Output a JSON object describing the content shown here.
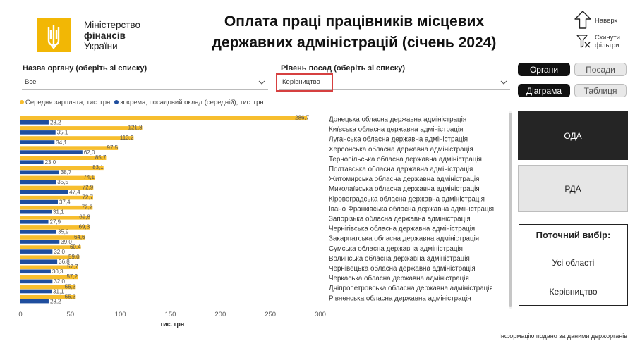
{
  "logo": {
    "line1": "Міністерство",
    "line2": "фінансів",
    "line3": "України",
    "color": "#f2b705"
  },
  "title": {
    "line1": "Оплата праці працівників місцевих",
    "line2": "державних адміністрацій (січень 2024)"
  },
  "nav": {
    "top_label": "Наверх",
    "reset_label_1": "Скинути",
    "reset_label_2": "фільтри"
  },
  "filters": {
    "organ_label": "Назва органу (оберіть зі списку)",
    "organ_value": "Все",
    "position_label": "Рівень посад (оберіть зі списку)",
    "position_value": "Керівництво"
  },
  "toggles": {
    "organy": "Органи",
    "posady": "Посади",
    "diagrama": "Діаграма",
    "tablytsia": "Таблиця"
  },
  "buttons": {
    "oda": "ОДА",
    "rda": "РДА"
  },
  "selection": {
    "header": "Поточний вибір:",
    "region": "Усі області",
    "level": "Керівництво"
  },
  "footnote": "Інформацію подано за даними держорганів",
  "colors": {
    "avg_salary": "#f7be2e",
    "base_salary": "#1f4e9e",
    "dark": "#252525"
  },
  "chart_data": {
    "type": "bar",
    "orientation": "horizontal",
    "categories": [
      "Донецька обласна державна адміністрація",
      "Київська обласна державна адміністрація",
      "Луганська обласна державна адміністрація",
      "Херсонська обласна державна адміністрація",
      "Тернопільська обласна державна адміністрація",
      "Полтавська обласна державна адміністрація",
      "Житомирська обласна державна адміністрація",
      "Миколаївська обласна державна адміністрація",
      "Кіровоградська обласна державна адміністрація",
      "Івано-Франківська обласна державна адміністрація",
      "Запорізька обласна державна адміністрація",
      "Чернігівська обласна державна адміністрація",
      "Закарпатська обласна державна адміністрація",
      "Сумська обласна державна адміністрація",
      "Волинська обласна державна адміністрація",
      "Чернівецька обласна державна адміністрація",
      "Черкаська обласна державна адміністрація",
      "Дніпропетровська обласна державна адміністрація",
      "Рівненська обласна державна адміністрація"
    ],
    "series": [
      {
        "name": "Середня зарплата, тис. грн",
        "values": [
          286.7,
          121.8,
          113.2,
          97.5,
          85.7,
          83.1,
          74.1,
          72.9,
          72.7,
          72.2,
          69.8,
          69.3,
          64.6,
          60.4,
          59.0,
          57.7,
          57.2,
          55.3,
          55.3
        ]
      },
      {
        "name": "зокрема, посадовий оклад (середній), тис. грн",
        "values": [
          28.2,
          35.1,
          34.1,
          62.0,
          23.0,
          38.7,
          35.5,
          47.4,
          37.4,
          31.1,
          27.9,
          35.9,
          39.0,
          32.0,
          36.8,
          30.3,
          32.0,
          31.1,
          28.2
        ]
      }
    ],
    "value_labels": {
      "avg": [
        "286,7",
        "121,8",
        "113,2",
        "97,5",
        "85,7",
        "83,1",
        "74,1",
        "72,9",
        "72,7",
        "72,2",
        "69,8",
        "69,3",
        "64,6",
        "60,4",
        "59,0",
        "57,7",
        "57,2",
        "55,3",
        "55,3"
      ],
      "base": [
        "28,2",
        "35,1",
        "34,1",
        "62,0",
        "23,0",
        "38,7",
        "35,5",
        "47,4",
        "37,4",
        "31,1",
        "27,9",
        "35,9",
        "39,0",
        "32,0",
        "36,8",
        "30,3",
        "32,0",
        "31,1",
        "28,2"
      ]
    },
    "xticks": [
      "0",
      "50",
      "100",
      "150",
      "200",
      "250",
      "300"
    ],
    "xlim": [
      0,
      300
    ],
    "xlabel": "тис. грн",
    "grid": false,
    "legend_position": "top-left"
  }
}
